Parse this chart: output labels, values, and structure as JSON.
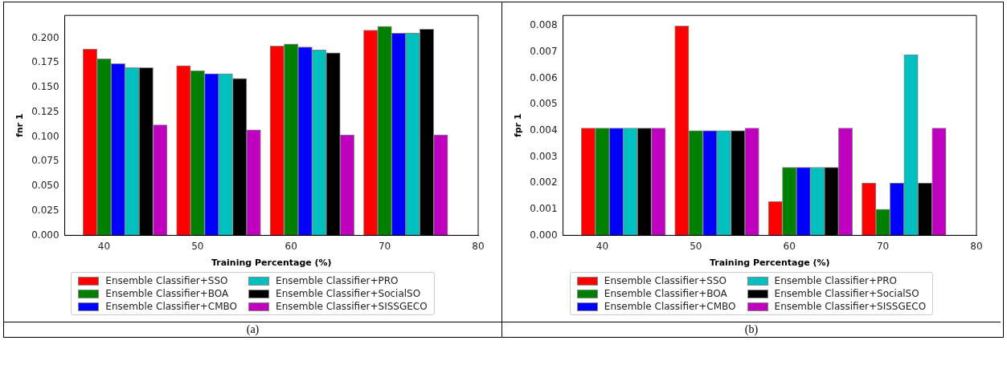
{
  "chart_data": [
    {
      "type": "bar",
      "xlabel": "Training Percentage (%)",
      "ylabel": "fnr 1",
      "xlim": [
        35.8,
        80
      ],
      "xticks": [
        40,
        50,
        60,
        70,
        80
      ],
      "ylim": [
        0,
        0.223
      ],
      "yticks": [
        {
          "value": 0,
          "label": "0.000"
        },
        {
          "value": 0.025,
          "label": "0.025"
        },
        {
          "value": 0.05,
          "label": "0.050"
        },
        {
          "value": 0.075,
          "label": "0.075"
        },
        {
          "value": 0.1,
          "label": "0.100"
        },
        {
          "value": 0.125,
          "label": "0.125"
        },
        {
          "value": 0.15,
          "label": "0.150"
        },
        {
          "value": 0.175,
          "label": "0.175"
        },
        {
          "value": 0.2,
          "label": "0.200"
        }
      ],
      "legend": "bottom",
      "annotations": [
        "(a)"
      ],
      "series": [
        {
          "name": "Ensemble Classifier+SSO",
          "color": "#ff0000",
          "x": [
            38.5,
            48.5,
            58.5,
            68.5
          ],
          "values": [
            0.189,
            0.172,
            0.192,
            0.208
          ]
        },
        {
          "name": "Ensemble Classifier+BOA",
          "color": "#008000",
          "x": [
            40,
            50,
            60,
            70
          ],
          "values": [
            0.179,
            0.167,
            0.194,
            0.212
          ]
        },
        {
          "name": "Ensemble Classifier+CMBO",
          "color": "#0000ff",
          "x": [
            41.5,
            51.5,
            61.5,
            71.5
          ],
          "values": [
            0.174,
            0.164,
            0.191,
            0.205
          ]
        },
        {
          "name": "Ensemble Classifier+PRO",
          "color": "#00bfbf",
          "x": [
            43,
            53,
            63,
            73
          ],
          "values": [
            0.17,
            0.164,
            0.188,
            0.205
          ]
        },
        {
          "name": "Ensemble Classifier+SocialSO",
          "color": "#000000",
          "x": [
            44.5,
            54.5,
            64.5,
            74.5
          ],
          "values": [
            0.17,
            0.159,
            0.185,
            0.209
          ]
        },
        {
          "name": "Ensemble Classifier+SISSGECO",
          "color": "#bf00bf",
          "x": [
            46,
            56,
            66,
            76
          ],
          "values": [
            0.112,
            0.107,
            0.102,
            0.102
          ]
        }
      ]
    },
    {
      "type": "bar",
      "xlabel": "Training Percentage (%)",
      "ylabel": "fpr 1",
      "xlim": [
        35.8,
        80
      ],
      "xticks": [
        40,
        50,
        60,
        70,
        80
      ],
      "ylim": [
        0,
        0.0084
      ],
      "yticks": [
        {
          "value": 0,
          "label": "0.000"
        },
        {
          "value": 0.001,
          "label": "0.001"
        },
        {
          "value": 0.002,
          "label": "0.002"
        },
        {
          "value": 0.003,
          "label": "0.003"
        },
        {
          "value": 0.004,
          "label": "0.004"
        },
        {
          "value": 0.005,
          "label": "0.005"
        },
        {
          "value": 0.006,
          "label": "0.006"
        },
        {
          "value": 0.007,
          "label": "0.007"
        },
        {
          "value": 0.008,
          "label": "0.008"
        }
      ],
      "legend": "bottom",
      "annotations": [
        "(b)"
      ],
      "series": [
        {
          "name": "Ensemble Classifier+SSO",
          "color": "#ff0000",
          "x": [
            38.5,
            48.5,
            58.5,
            68.5
          ],
          "values": [
            0.0041,
            0.008,
            0.0013,
            0.002
          ]
        },
        {
          "name": "Ensemble Classifier+BOA",
          "color": "#008000",
          "x": [
            40,
            50,
            60,
            70
          ],
          "values": [
            0.0041,
            0.004,
            0.0026,
            0.001
          ]
        },
        {
          "name": "Ensemble Classifier+CMBO",
          "color": "#0000ff",
          "x": [
            41.5,
            51.5,
            61.5,
            71.5
          ],
          "values": [
            0.0041,
            0.004,
            0.0026,
            0.002
          ]
        },
        {
          "name": "Ensemble Classifier+PRO",
          "color": "#00bfbf",
          "x": [
            43,
            53,
            63,
            73
          ],
          "values": [
            0.0041,
            0.004,
            0.0026,
            0.0069
          ]
        },
        {
          "name": "Ensemble Classifier+SocialSO",
          "color": "#000000",
          "x": [
            44.5,
            54.5,
            64.5,
            74.5
          ],
          "values": [
            0.0041,
            0.004,
            0.0026,
            0.002
          ]
        },
        {
          "name": "Ensemble Classifier+SISSGECO",
          "color": "#bf00bf",
          "x": [
            46,
            56,
            66,
            76
          ],
          "values": [
            0.0041,
            0.0041,
            0.0041,
            0.0041
          ]
        }
      ]
    }
  ]
}
